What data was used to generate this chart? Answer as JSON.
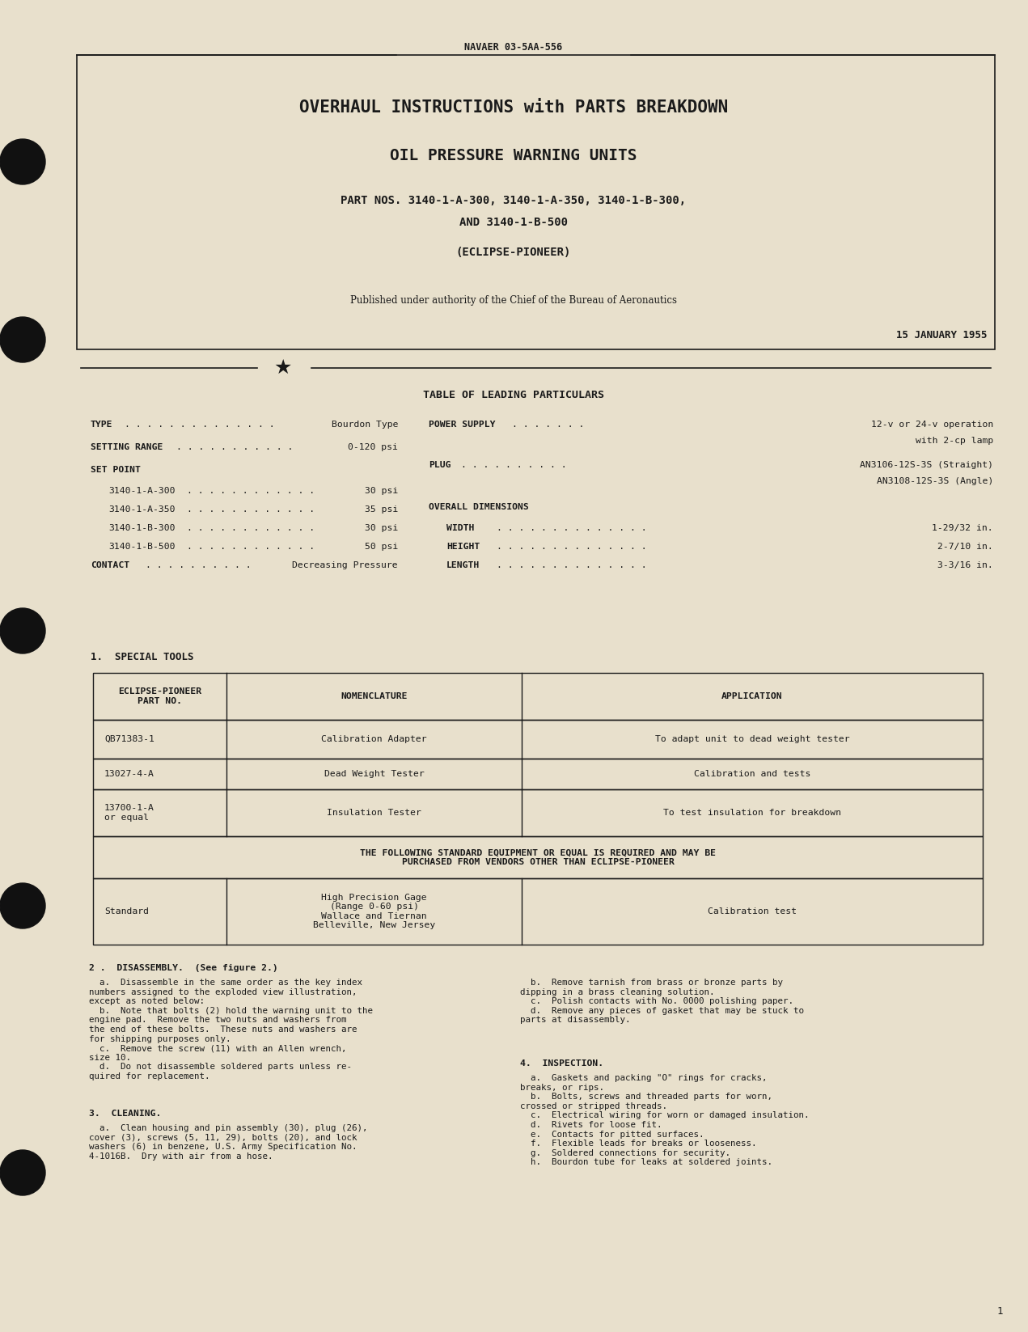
{
  "bg_color": "#e8e0cc",
  "text_color": "#1a1a1a",
  "doc_number": "NAVAER 03-5AA-556",
  "title1": "OVERHAUL INSTRUCTIONS with PARTS BREAKDOWN",
  "title2": "OIL PRESSURE WARNING UNITS",
  "title3": "PART NOS. 3140-1-A-300, 3140-1-A-350, 3140-1-B-300,",
  "title4": "AND 3140-1-B-500",
  "title5": "(ECLIPSE-PIONEER)",
  "published": "Published under authority of the Chief of the Bureau of Aeronautics",
  "date": "15 JANUARY 1955",
  "table_heading": "TABLE OF LEADING PARTICULARS",
  "special_tools_heading": "1.  SPECIAL TOOLS",
  "table1_headers": [
    "ECLIPSE-PIONEER\nPART NO.",
    "NOMENCLATURE",
    "APPLICATION"
  ],
  "table1_rows": [
    [
      "QB71383-1",
      "Calibration Adapter",
      "To adapt unit to dead weight tester"
    ],
    [
      "13027-4-A",
      "Dead Weight Tester",
      "Calibration and tests"
    ],
    [
      "13700-1-A\nor equal",
      "Insulation Tester",
      "To test insulation for breakdown"
    ]
  ],
  "table2_note": "THE FOLLOWING STANDARD EQUIPMENT OR EQUAL IS REQUIRED AND MAY BE\nPURCHASED FROM VENDORS OTHER THAN ECLIPSE-PIONEER",
  "table2_rows": [
    [
      "Standard",
      "High Precision Gage\n(Range 0-60 psi)\nWallace and Tiernan\nBelleville, New Jersey",
      "Calibration test"
    ]
  ],
  "section2_heading": "2 .  DISASSEMBLY.  (See figure 2.)",
  "section2_col1": "  a.  Disassemble in the same order as the key index\nnumbers assigned to the exploded view illustration,\nexcept as noted below:\n  b.  Note that bolts (2) hold the warning unit to the\nengine pad.  Remove the two nuts and washers from\nthe end of these bolts.  These nuts and washers are\nfor shipping purposes only.\n  c.  Remove the screw (11) with an Allen wrench,\nsize 10.\n  d.  Do not disassemble soldered parts unless re-\nquired for replacement.",
  "section3_heading": "3.  CLEANING.",
  "section3_col1": "  a.  Clean housing and pin assembly (30), plug (26),\ncover (3), screws (5, 11, 29), bolts (20), and lock\nwashers (6) in benzene, U.S. Army Specification No.\n4-1016B.  Dry with air from a hose.",
  "section2_col2": "  b.  Remove tarnish from brass or bronze parts by\ndipping in a brass cleaning solution.\n  c.  Polish contacts with No. 0000 polishing paper.\n  d.  Remove any pieces of gasket that may be stuck to\nparts at disassembly.",
  "section4_heading": "4.  INSPECTION.",
  "section4_col2": "  a.  Gaskets and packing \"O\" rings for cracks,\nbreaks, or rips.\n  b.  Bolts, screws and threaded parts for worn,\ncrossed or stripped threads.\n  c.  Electrical wiring for worn or damaged insulation.\n  d.  Rivets for loose fit.\n  e.  Contacts for pitted surfaces.\n  f.  Flexible leads for breaks or looseness.\n  g.  Soldered connections for security.\n  h.  Bourdon tube for leaks at soldered joints.",
  "page_number": "1",
  "binder_holes_y": [
    200,
    420,
    780,
    1120,
    1450
  ]
}
